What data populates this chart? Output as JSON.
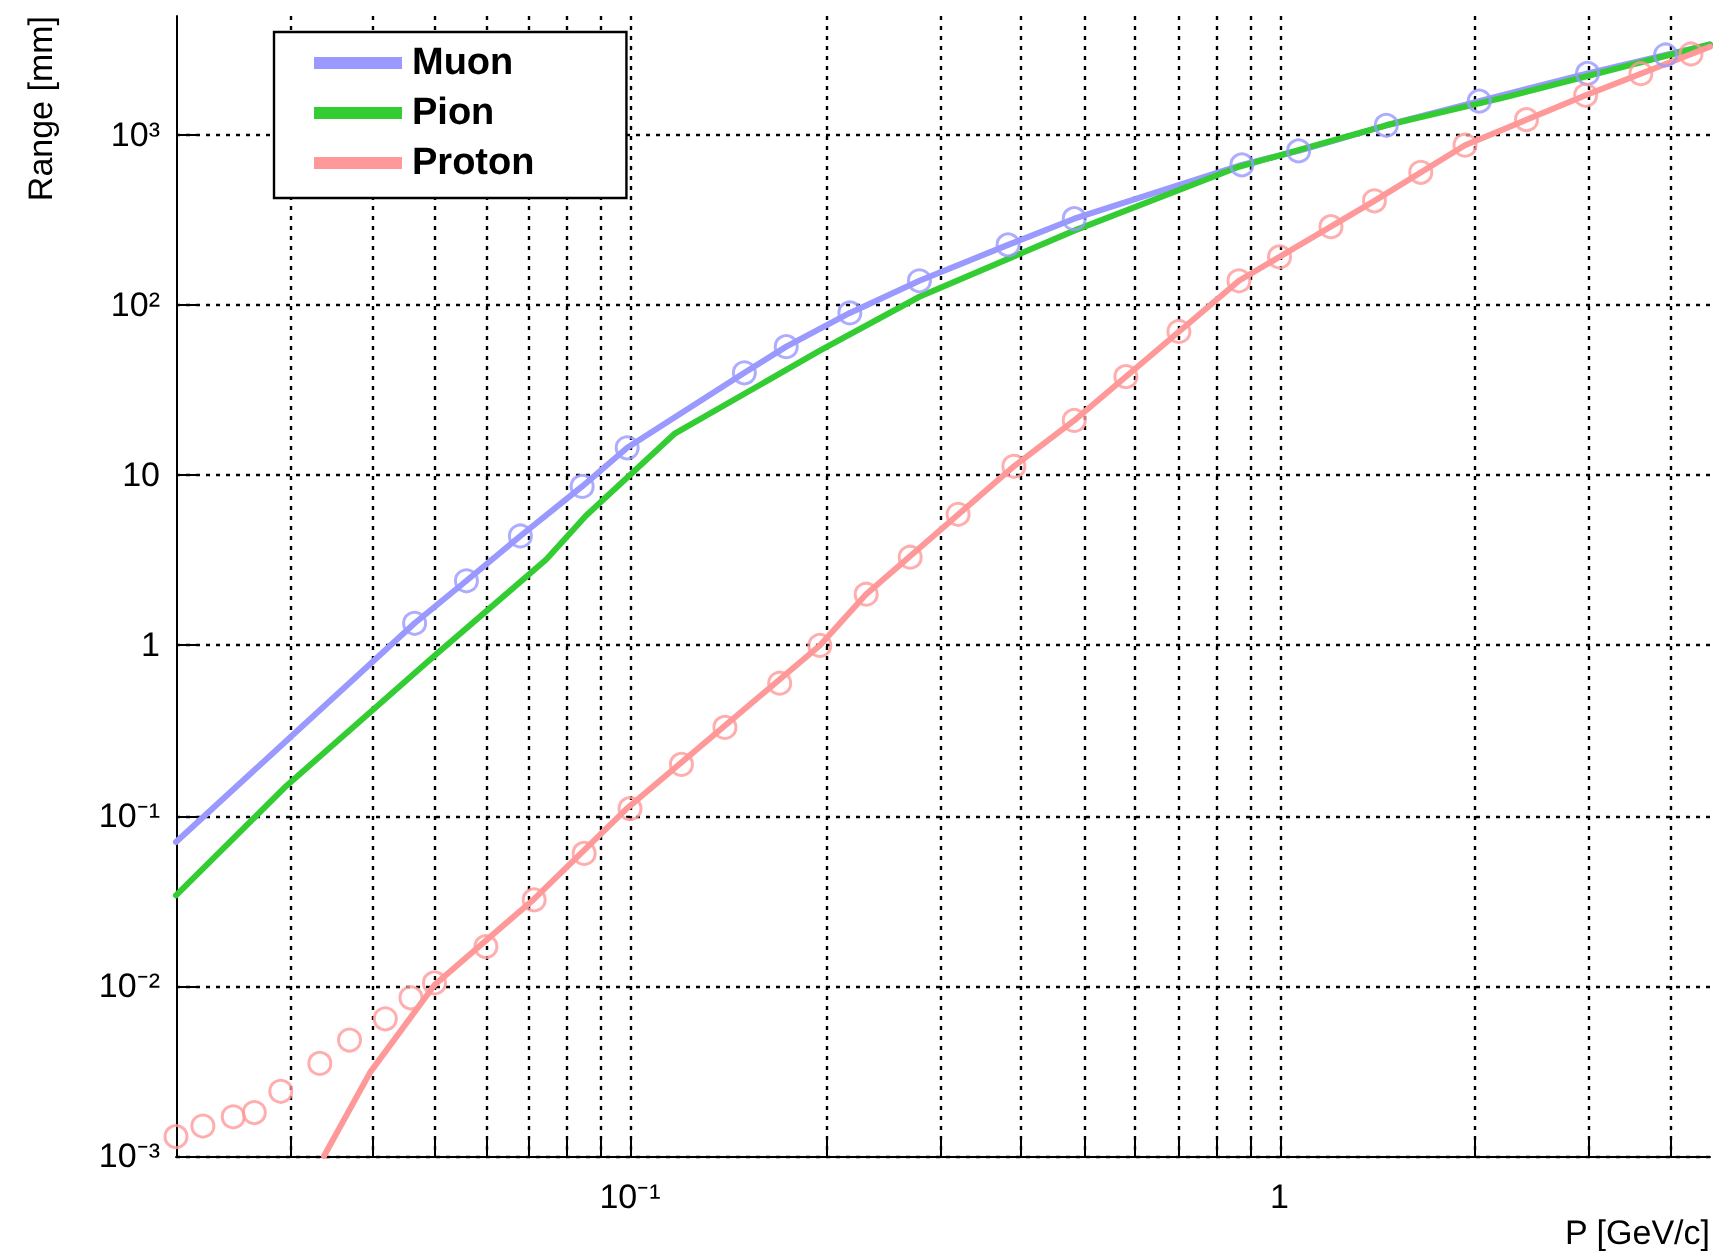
{
  "chart_data": {
    "type": "line",
    "xlabel": "P [GeV/c]",
    "ylabel": "Range [mm]",
    "log": "xy",
    "grid": true,
    "legend": "top left",
    "line_style": "solid",
    "xlim": [
      0.02,
      4.6
    ],
    "ylim": [
      0.001,
      5000
    ],
    "xticks": [
      {
        "value": 0.03,
        "label": null
      },
      {
        "value": 0.04,
        "label": null
      },
      {
        "value": 0.05,
        "label": null
      },
      {
        "value": 0.06,
        "label": null
      },
      {
        "value": 0.07,
        "label": null
      },
      {
        "value": 0.08,
        "label": null
      },
      {
        "value": 0.09,
        "label": null
      },
      {
        "value": 0.1,
        "label": "10⁻¹"
      },
      {
        "value": 0.2,
        "label": null
      },
      {
        "value": 0.3,
        "label": null
      },
      {
        "value": 0.4,
        "label": null
      },
      {
        "value": 0.5,
        "label": null
      },
      {
        "value": 0.6,
        "label": null
      },
      {
        "value": 0.7,
        "label": null
      },
      {
        "value": 0.8,
        "label": null
      },
      {
        "value": 0.9,
        "label": null
      },
      {
        "value": 1,
        "label": "1"
      },
      {
        "value": 2,
        "label": null
      },
      {
        "value": 3,
        "label": null
      },
      {
        "value": 4,
        "label": null
      }
    ],
    "yticks": [
      {
        "value": 0.001,
        "label": "10⁻³"
      },
      {
        "value": 0.01,
        "label": "10⁻²"
      },
      {
        "value": 0.1,
        "label": "10⁻¹"
      },
      {
        "value": 1,
        "label": "1"
      },
      {
        "value": 10,
        "label": "10"
      },
      {
        "value": 100,
        "label": "10²"
      },
      {
        "value": 1000,
        "label": "10³"
      }
    ],
    "series": [
      {
        "name": "Muon",
        "marker": "none",
        "color": "#9999ff",
        "x": [
          0.02,
          0.0466,
          0.056,
          0.0678,
          0.0844,
          0.099,
          0.15,
          0.174,
          0.218,
          0.279,
          0.382,
          0.483,
          0.875,
          1.07,
          1.46,
          2.03,
          2.98,
          3.93,
          4.6
        ],
        "values": [
          0.07,
          1.35,
          2.4,
          4.4,
          8.6,
          14.5,
          40,
          57,
          90,
          139,
          226,
          322,
          667,
          806,
          1140,
          1580,
          2300,
          2950,
          3400
        ]
      },
      {
        "name": "Pion",
        "marker": "none",
        "color": "#33cc33",
        "x": [
          0.02,
          0.0296,
          0.05,
          0.0743,
          0.0856,
          0.117,
          0.196,
          0.279,
          0.483,
          0.866,
          1.46,
          2.23,
          4.6
        ],
        "values": [
          0.034,
          0.15,
          0.87,
          3.2,
          5.8,
          17.5,
          54,
          112,
          274,
          650,
          1140,
          1670,
          3400
        ]
      },
      {
        "name": "Proton",
        "marker": "none",
        "color": "#ff9999",
        "x": [
          0.0338,
          0.0398,
          0.05,
          0.0712,
          0.0986,
          0.196,
          0.231,
          0.39,
          0.483,
          0.866,
          1.4,
          1.93,
          2.96,
          4.6
        ],
        "values": [
          0.001,
          0.0031,
          0.0101,
          0.0324,
          0.109,
          1.0,
          2.0,
          11.3,
          21,
          139,
          410,
          870,
          1710,
          3300
        ]
      },
      {
        "type": "scatter",
        "marker": "circle",
        "color": "#9999ff",
        "x": [
          0.0466,
          0.056,
          0.0678,
          0.0844,
          0.099,
          0.15,
          0.174,
          0.218,
          0.279,
          0.382,
          0.483,
          0.875,
          1.07,
          1.46,
          2.03,
          2.98,
          3.93
        ],
        "values": [
          1.35,
          2.4,
          4.4,
          8.6,
          14.5,
          40,
          57,
          90,
          139,
          226,
          322,
          667,
          806,
          1140,
          1580,
          2300,
          2950
        ]
      },
      {
        "type": "scatter",
        "marker": "circle",
        "color": "#ff9999",
        "x": [
          0.02,
          0.022,
          0.0245,
          0.0264,
          0.029,
          0.0333,
          0.037,
          0.042,
          0.046,
          0.05,
          0.06,
          0.0712,
          0.085,
          0.1,
          0.12,
          0.14,
          0.17,
          0.196,
          0.231,
          0.27,
          0.32,
          0.39,
          0.483,
          0.58,
          0.7,
          0.866,
          1.0,
          1.2,
          1.4,
          1.65,
          1.93,
          2.4,
          2.96,
          3.6,
          4.3
        ],
        "values": [
          0.0013,
          0.0015,
          0.0017,
          0.0018,
          0.0024,
          0.0035,
          0.0048,
          0.0064,
          0.0085,
          0.0104,
          0.017,
          0.032,
          0.06,
          0.11,
          0.2,
          0.33,
          0.6,
          1.0,
          2.0,
          3.3,
          5.9,
          11.3,
          21,
          38,
          70,
          139,
          192,
          289,
          410,
          603,
          870,
          1230,
          1710,
          2290,
          2990
        ]
      }
    ]
  }
}
